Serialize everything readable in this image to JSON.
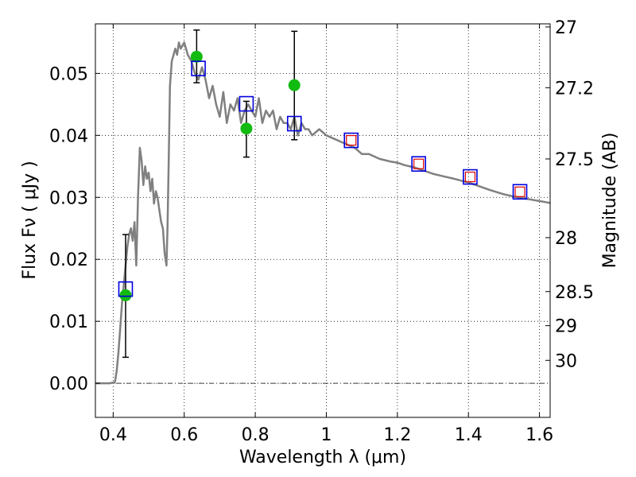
{
  "chart_data": {
    "type": "scatter",
    "xlabel": "Wavelength  λ (μm)",
    "ylabel": "Flux  Fν  ( μJy )",
    "ylabel_right": "Magnitude (AB)",
    "xlim": [
      0.35,
      1.63
    ],
    "ylim": [
      -0.0055,
      0.058
    ],
    "x_ticks": [
      0.4,
      0.6,
      0.8,
      1.0,
      1.2,
      1.4,
      1.6
    ],
    "x_tick_labels": [
      "0.4",
      "0.6",
      "0.8",
      "1",
      "1.2",
      "1.4",
      "1.6"
    ],
    "y_ticks": [
      0.0,
      0.01,
      0.02,
      0.03,
      0.04,
      0.05
    ],
    "y_tick_labels": [
      "0.00",
      "0.01",
      "0.02",
      "0.03",
      "0.04",
      "0.05"
    ],
    "right_ticks": [
      {
        "flux": 0.0575,
        "label": "27"
      },
      {
        "flux": 0.0477,
        "label": "27.2"
      },
      {
        "flux": 0.0362,
        "label": "27.5"
      },
      {
        "flux": 0.0235,
        "label": "28"
      },
      {
        "flux": 0.0148,
        "label": "28.5"
      },
      {
        "flux": 0.0093,
        "label": "29"
      },
      {
        "flux": 0.0037,
        "label": "30"
      }
    ],
    "grid": true,
    "zero_line": true,
    "colors": {
      "model": "#808080",
      "observed": "#11bb11",
      "model_photometry": "#0000dd",
      "model_photometry_inner": "#dd0000",
      "errorbar": "#000000"
    },
    "series": [
      {
        "kind": "line",
        "x": [
          0.35,
          0.37,
          0.39,
          0.405,
          0.41,
          0.415,
          0.42,
          0.425,
          0.43,
          0.435,
          0.44,
          0.445,
          0.45,
          0.455,
          0.46,
          0.465,
          0.47,
          0.475,
          0.48,
          0.485,
          0.49,
          0.495,
          0.5,
          0.505,
          0.51,
          0.515,
          0.52,
          0.525,
          0.53,
          0.535,
          0.54,
          0.545,
          0.55,
          0.553,
          0.556,
          0.56,
          0.565,
          0.57,
          0.575,
          0.58,
          0.585,
          0.59,
          0.6,
          0.61,
          0.62,
          0.63,
          0.64,
          0.65,
          0.66,
          0.67,
          0.68,
          0.69,
          0.7,
          0.71,
          0.72,
          0.73,
          0.74,
          0.75,
          0.76,
          0.77,
          0.78,
          0.79,
          0.8,
          0.81,
          0.82,
          0.83,
          0.84,
          0.85,
          0.86,
          0.87,
          0.88,
          0.89,
          0.9,
          0.91,
          0.92,
          0.93,
          0.94,
          0.95,
          0.96,
          0.98,
          1.0,
          1.02,
          1.04,
          1.06,
          1.08,
          1.1,
          1.12,
          1.15,
          1.18,
          1.2,
          1.22,
          1.25,
          1.28,
          1.3,
          1.33,
          1.36,
          1.4,
          1.43,
          1.46,
          1.5,
          1.53,
          1.56,
          1.6,
          1.63
        ],
        "y": [
          0.0,
          0.0,
          0.0,
          0.0002,
          0.002,
          0.005,
          0.009,
          0.013,
          0.016,
          0.019,
          0.022,
          0.024,
          0.025,
          0.023,
          0.026,
          0.019,
          0.03,
          0.038,
          0.036,
          0.032,
          0.035,
          0.033,
          0.034,
          0.031,
          0.033,
          0.029,
          0.031,
          0.03,
          0.028,
          0.026,
          0.025,
          0.021,
          0.019,
          0.025,
          0.035,
          0.048,
          0.052,
          0.053,
          0.054,
          0.053,
          0.055,
          0.054,
          0.055,
          0.053,
          0.052,
          0.05,
          0.049,
          0.051,
          0.049,
          0.046,
          0.048,
          0.045,
          0.043,
          0.047,
          0.042,
          0.045,
          0.044,
          0.046,
          0.042,
          0.044,
          0.045,
          0.044,
          0.043,
          0.046,
          0.042,
          0.044,
          0.043,
          0.044,
          0.041,
          0.043,
          0.042,
          0.042,
          0.041,
          0.043,
          0.04,
          0.042,
          0.041,
          0.041,
          0.04,
          0.041,
          0.04,
          0.0395,
          0.039,
          0.0385,
          0.038,
          0.037,
          0.037,
          0.0362,
          0.0358,
          0.0356,
          0.0352,
          0.0348,
          0.0342,
          0.0338,
          0.0334,
          0.033,
          0.0324,
          0.0318,
          0.0312,
          0.0305,
          0.0301,
          0.0298,
          0.0294,
          0.0291
        ]
      },
      {
        "kind": "observed",
        "x": [
          0.435,
          0.635,
          0.775,
          0.91
        ],
        "y": [
          0.0142,
          0.0527,
          0.0411,
          0.0481
        ],
        "yerr_low": [
          0.0042,
          0.0485,
          0.0365,
          0.0393
        ],
        "yerr_high": [
          0.024,
          0.057,
          0.0455,
          0.0568
        ]
      },
      {
        "kind": "model_photometry",
        "x": [
          0.435,
          0.64,
          0.775,
          0.91,
          1.07,
          1.26,
          1.405,
          1.545
        ],
        "y": [
          0.0152,
          0.0508,
          0.0451,
          0.0419,
          0.0392,
          0.0354,
          0.0333,
          0.0309
        ],
        "inner": [
          false,
          false,
          false,
          false,
          true,
          true,
          true,
          true
        ]
      }
    ]
  }
}
